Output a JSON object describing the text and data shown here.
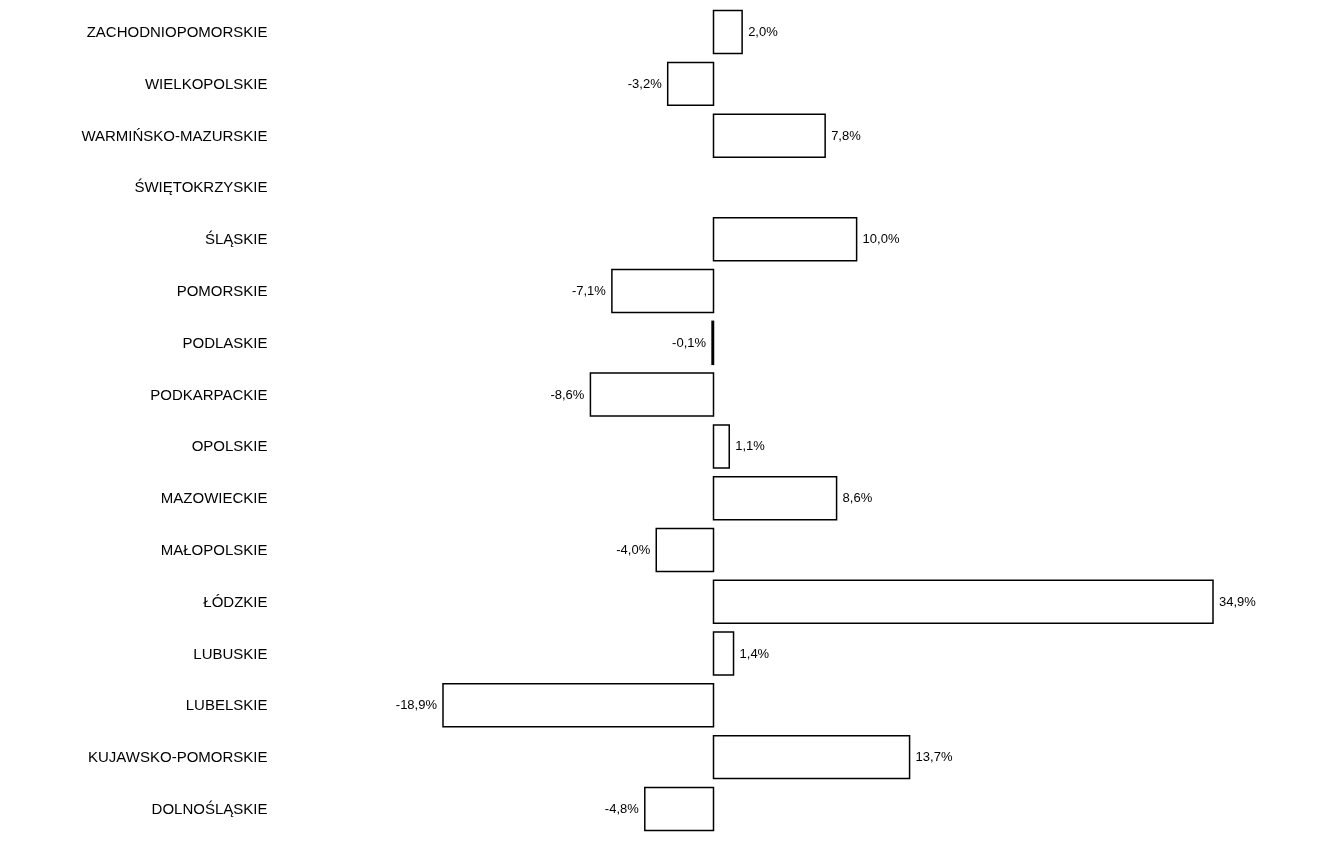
{
  "chart_data": {
    "type": "bar",
    "orientation": "horizontal",
    "tick_labels": "y",
    "categories": [
      "ZACHODNIOPOMORSKIE",
      "WIELKOPOLSKIE",
      "WARMIŃSKO-MAZURSKIE",
      "ŚWIĘTOKRZYSKIE",
      "ŚLĄSKIE",
      "POMORSKIE",
      "PODLASKIE",
      "PODKARPACKIE",
      "OPOLSKIE",
      "MAZOWIECKIE",
      "MAŁOPOLSKIE",
      "ŁÓDZKIE",
      "LUBUSKIE",
      "LUBELSKIE",
      "KUJAWSKO-POMORSKIE",
      "DOLNOŚLĄSKIE"
    ],
    "values": [
      2.0,
      -3.2,
      7.8,
      null,
      10.0,
      -7.1,
      -0.1,
      -8.6,
      1.1,
      8.6,
      -4.0,
      34.9,
      1.4,
      -18.9,
      13.7,
      -4.8
    ],
    "value_labels": [
      "2,0%",
      "-3,2%",
      "7,8%",
      null,
      "10,0%",
      "-7,1%",
      "-0,1%",
      "-8,6%",
      "1,1%",
      "8,6%",
      "-4,0%",
      "34,9%",
      "1,4%",
      "-18,9%",
      "13,7%",
      "-4,8%"
    ],
    "color": "#ffffff"
  }
}
